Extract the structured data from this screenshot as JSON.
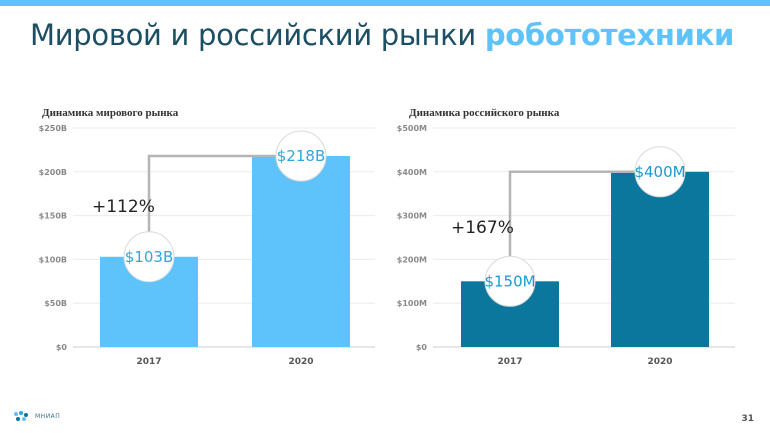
{
  "slide": {
    "title_main": "Мировой и российский рынки",
    "title_accent": "робототехники",
    "page_number": "31",
    "logo_text": "МНИАП"
  },
  "chart_data": [
    {
      "type": "bar",
      "title": "Динамика мирового рынка",
      "categories": [
        "2017",
        "2020"
      ],
      "values": [
        103,
        218
      ],
      "value_labels": [
        "$103B",
        "$218B"
      ],
      "growth_label": "+112%",
      "yticks": [
        "$0",
        "$50B",
        "$100B",
        "$150B",
        "$200B",
        "$250B"
      ],
      "ylim": [
        0,
        250
      ],
      "bar_color": "#5ec2fb",
      "label_color": "#2fa6e0",
      "grid": true
    },
    {
      "type": "bar",
      "title": "Динамика российского рынка",
      "categories": [
        "2017",
        "2020"
      ],
      "values": [
        150,
        400
      ],
      "value_labels": [
        "$150M",
        "$400M"
      ],
      "growth_label": "+167%",
      "yticks": [
        "$0",
        "$100M",
        "$200M",
        "$300M",
        "$400M",
        "$500M"
      ],
      "ylim": [
        0,
        500
      ],
      "bar_color": "#0c779c",
      "label_color": "#1a9ad0",
      "grid": true
    }
  ]
}
